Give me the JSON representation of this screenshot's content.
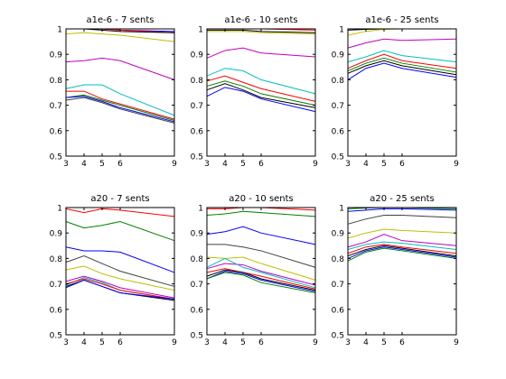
{
  "chart_data": [
    {
      "type": "line",
      "title": "a1e-6 - 7 sents",
      "x": [
        3,
        4,
        5,
        6,
        9
      ],
      "xticks": [
        3,
        4,
        5,
        6,
        9
      ],
      "yticks": [
        0.5,
        0.6,
        0.7,
        0.8,
        0.9,
        1
      ],
      "xlim": [
        3,
        9
      ],
      "ylim": [
        0.5,
        1
      ],
      "series": [
        {
          "color": "#0000ff",
          "values": [
            1.0,
            1.0,
            1.0,
            0.995,
            0.99
          ]
        },
        {
          "color": "#ff0000",
          "values": [
            1.0,
            1.0,
            1.0,
            0.995,
            0.985
          ]
        },
        {
          "color": "#000000",
          "values": [
            1.0,
            1.0,
            0.995,
            0.99,
            0.985
          ]
        },
        {
          "color": "#bfbf00",
          "values": [
            0.98,
            0.985,
            0.98,
            0.975,
            0.95
          ]
        },
        {
          "color": "#bf00bf",
          "values": [
            0.87,
            0.875,
            0.885,
            0.875,
            0.8
          ]
        },
        {
          "color": "#00bfbf",
          "values": [
            0.765,
            0.78,
            0.78,
            0.745,
            0.66
          ]
        },
        {
          "color": "#ff0000",
          "values": [
            0.755,
            0.755,
            0.725,
            0.705,
            0.645
          ]
        },
        {
          "color": "#008000",
          "values": [
            0.73,
            0.74,
            0.72,
            0.7,
            0.64
          ]
        },
        {
          "color": "#0000ff",
          "values": [
            0.73,
            0.735,
            0.715,
            0.69,
            0.635
          ]
        },
        {
          "color": "#404040",
          "values": [
            0.72,
            0.73,
            0.71,
            0.685,
            0.63
          ]
        }
      ]
    },
    {
      "type": "line",
      "title": "a1e-6 - 10 sents",
      "x": [
        3,
        4,
        5,
        6,
        9
      ],
      "xticks": [
        3,
        4,
        5,
        6,
        9
      ],
      "yticks": [
        0.5,
        0.6,
        0.7,
        0.8,
        0.9,
        1
      ],
      "xlim": [
        3,
        9
      ],
      "ylim": [
        0.5,
        1
      ],
      "series": [
        {
          "color": "#0000ff",
          "values": [
            1.0,
            1.0,
            1.0,
            1.0,
            1.0
          ]
        },
        {
          "color": "#ff0000",
          "values": [
            1.0,
            1.0,
            1.0,
            1.0,
            0.995
          ]
        },
        {
          "color": "#000000",
          "values": [
            0.995,
            0.995,
            0.995,
            0.99,
            0.985
          ]
        },
        {
          "color": "#bfbf00",
          "values": [
            0.99,
            0.99,
            0.99,
            0.985,
            0.98
          ]
        },
        {
          "color": "#bf00bf",
          "values": [
            0.885,
            0.915,
            0.925,
            0.905,
            0.89
          ]
        },
        {
          "color": "#00bfbf",
          "values": [
            0.815,
            0.845,
            0.835,
            0.8,
            0.745
          ]
        },
        {
          "color": "#ff0000",
          "values": [
            0.795,
            0.815,
            0.79,
            0.765,
            0.715
          ]
        },
        {
          "color": "#008000",
          "values": [
            0.775,
            0.795,
            0.775,
            0.745,
            0.7
          ]
        },
        {
          "color": "#000000",
          "values": [
            0.76,
            0.785,
            0.76,
            0.73,
            0.69
          ]
        },
        {
          "color": "#0000ff",
          "values": [
            0.735,
            0.77,
            0.755,
            0.725,
            0.675
          ]
        }
      ]
    },
    {
      "type": "line",
      "title": "a1e-6 - 25 sents",
      "x": [
        3,
        4,
        5,
        6,
        9
      ],
      "xticks": [
        3,
        4,
        5,
        6,
        9
      ],
      "yticks": [
        0.5,
        0.6,
        0.7,
        0.8,
        0.9,
        1
      ],
      "xlim": [
        3,
        9
      ],
      "ylim": [
        0.5,
        1
      ],
      "series": [
        {
          "color": "#0000ff",
          "values": [
            1.0,
            1.0,
            1.0,
            1.0,
            1.0
          ]
        },
        {
          "color": "#ff0000",
          "values": [
            1.0,
            1.0,
            1.0,
            1.0,
            1.0
          ]
        },
        {
          "color": "#000000",
          "values": [
            0.995,
            0.998,
            1.0,
            1.0,
            1.0
          ]
        },
        {
          "color": "#bfbf00",
          "values": [
            0.975,
            0.99,
            0.998,
            1.0,
            1.0
          ]
        },
        {
          "color": "#bf00bf",
          "values": [
            0.925,
            0.945,
            0.96,
            0.955,
            0.96
          ]
        },
        {
          "color": "#00bfbf",
          "values": [
            0.87,
            0.89,
            0.915,
            0.895,
            0.87
          ]
        },
        {
          "color": "#ff0000",
          "values": [
            0.845,
            0.875,
            0.9,
            0.875,
            0.845
          ]
        },
        {
          "color": "#008000",
          "values": [
            0.835,
            0.865,
            0.885,
            0.865,
            0.83
          ]
        },
        {
          "color": "#000000",
          "values": [
            0.825,
            0.855,
            0.875,
            0.855,
            0.82
          ]
        },
        {
          "color": "#0000ff",
          "values": [
            0.8,
            0.845,
            0.865,
            0.845,
            0.81
          ]
        }
      ]
    },
    {
      "type": "line",
      "title": "a20 - 7 sents",
      "x": [
        3,
        4,
        5,
        6,
        9
      ],
      "xticks": [
        3,
        4,
        5,
        6,
        9
      ],
      "yticks": [
        0.5,
        0.6,
        0.7,
        0.8,
        0.9,
        1
      ],
      "xlim": [
        3,
        9
      ],
      "ylim": [
        0.5,
        1
      ],
      "series": [
        {
          "color": "#ff0000",
          "values": [
            0.995,
            0.98,
            0.995,
            0.99,
            0.965
          ]
        },
        {
          "color": "#008000",
          "values": [
            0.945,
            0.92,
            0.93,
            0.945,
            0.87
          ]
        },
        {
          "color": "#0000ff",
          "values": [
            0.845,
            0.83,
            0.83,
            0.825,
            0.745
          ]
        },
        {
          "color": "#404040",
          "values": [
            0.785,
            0.81,
            0.78,
            0.75,
            0.69
          ]
        },
        {
          "color": "#bfbf00",
          "values": [
            0.755,
            0.77,
            0.74,
            0.72,
            0.675
          ]
        },
        {
          "color": "#bf00bf",
          "values": [
            0.71,
            0.73,
            0.71,
            0.685,
            0.645
          ]
        },
        {
          "color": "#00bfbf",
          "values": [
            0.695,
            0.725,
            0.705,
            0.675,
            0.64
          ]
        },
        {
          "color": "#ff0000",
          "values": [
            0.7,
            0.72,
            0.7,
            0.675,
            0.64
          ]
        },
        {
          "color": "#000000",
          "values": [
            0.69,
            0.715,
            0.69,
            0.665,
            0.635
          ]
        },
        {
          "color": "#0000ff",
          "values": [
            0.685,
            0.715,
            0.69,
            0.665,
            0.64
          ]
        }
      ]
    },
    {
      "type": "line",
      "title": "a20 - 10 sents",
      "x": [
        3,
        4,
        5,
        6,
        9
      ],
      "xticks": [
        3,
        4,
        5,
        6,
        9
      ],
      "yticks": [
        0.5,
        0.6,
        0.7,
        0.8,
        0.9,
        1
      ],
      "xlim": [
        3,
        9
      ],
      "ylim": [
        0.5,
        1
      ],
      "series": [
        {
          "color": "#ff0000",
          "values": [
            0.995,
            0.995,
            1.0,
            1.0,
            0.99
          ]
        },
        {
          "color": "#008000",
          "values": [
            0.97,
            0.975,
            0.985,
            0.98,
            0.965
          ]
        },
        {
          "color": "#0000ff",
          "values": [
            0.895,
            0.905,
            0.925,
            0.9,
            0.855
          ]
        },
        {
          "color": "#404040",
          "values": [
            0.855,
            0.855,
            0.845,
            0.83,
            0.765
          ]
        },
        {
          "color": "#bfbf00",
          "values": [
            0.805,
            0.8,
            0.805,
            0.78,
            0.715
          ]
        },
        {
          "color": "#bf00bf",
          "values": [
            0.76,
            0.78,
            0.775,
            0.75,
            0.695
          ]
        },
        {
          "color": "#00bfbf",
          "values": [
            0.765,
            0.8,
            0.765,
            0.745,
            0.685
          ]
        },
        {
          "color": "#ff0000",
          "values": [
            0.745,
            0.76,
            0.745,
            0.73,
            0.68
          ]
        },
        {
          "color": "#000000",
          "values": [
            0.73,
            0.755,
            0.745,
            0.72,
            0.675
          ]
        },
        {
          "color": "#0000ff",
          "values": [
            0.72,
            0.75,
            0.74,
            0.715,
            0.67
          ]
        },
        {
          "color": "#008000",
          "values": [
            0.72,
            0.745,
            0.735,
            0.705,
            0.665
          ]
        }
      ]
    },
    {
      "type": "line",
      "title": "a20 - 25 sents",
      "x": [
        3,
        4,
        5,
        6,
        9
      ],
      "xticks": [
        3,
        4,
        5,
        6,
        9
      ],
      "yticks": [
        0.5,
        0.6,
        0.7,
        0.8,
        0.9,
        1
      ],
      "xlim": [
        3,
        9
      ],
      "ylim": [
        0.5,
        1
      ],
      "series": [
        {
          "color": "#ff0000",
          "values": [
            1.0,
            1.0,
            1.0,
            1.0,
            1.0
          ]
        },
        {
          "color": "#008000",
          "values": [
            0.995,
            0.998,
            1.0,
            1.0,
            0.995
          ]
        },
        {
          "color": "#0000ff",
          "values": [
            0.985,
            0.99,
            0.995,
            0.995,
            0.99
          ]
        },
        {
          "color": "#404040",
          "values": [
            0.935,
            0.955,
            0.97,
            0.97,
            0.96
          ]
        },
        {
          "color": "#bfbf00",
          "values": [
            0.88,
            0.9,
            0.915,
            0.91,
            0.9
          ]
        },
        {
          "color": "#bf00bf",
          "values": [
            0.845,
            0.865,
            0.895,
            0.87,
            0.85
          ]
        },
        {
          "color": "#00bfbf",
          "values": [
            0.835,
            0.855,
            0.865,
            0.86,
            0.835
          ]
        },
        {
          "color": "#ff0000",
          "values": [
            0.82,
            0.845,
            0.855,
            0.845,
            0.82
          ]
        },
        {
          "color": "#000000",
          "values": [
            0.81,
            0.835,
            0.85,
            0.84,
            0.81
          ]
        },
        {
          "color": "#0000ff",
          "values": [
            0.8,
            0.83,
            0.845,
            0.835,
            0.805
          ]
        },
        {
          "color": "#008000",
          "values": [
            0.79,
            0.825,
            0.84,
            0.83,
            0.8
          ]
        }
      ]
    }
  ]
}
